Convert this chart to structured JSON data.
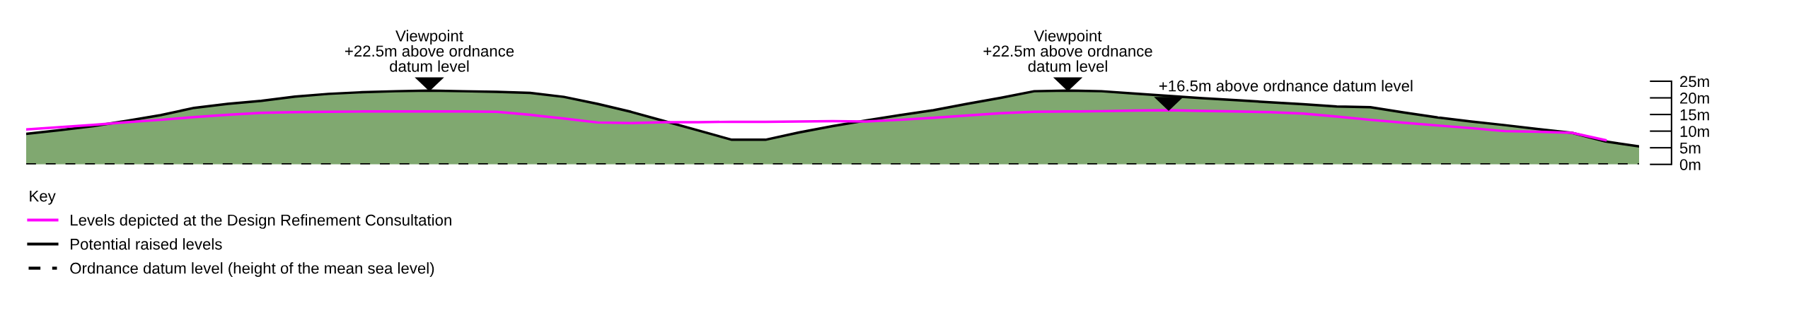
{
  "chart_data": {
    "type": "line",
    "legend_title": "Key",
    "legend": "bottom left",
    "tick_labels": "y",
    "grid": false,
    "categories": [
      null,
      null,
      null,
      null,
      null,
      null,
      null,
      null,
      null,
      null,
      null,
      null,
      null,
      null,
      null,
      null,
      null,
      null,
      null,
      null,
      null,
      null,
      null,
      null,
      null,
      null,
      null,
      null,
      null,
      null,
      null,
      null,
      null,
      null,
      null,
      null,
      null,
      null,
      null,
      null,
      null,
      null,
      null,
      null,
      null,
      null,
      null,
      null,
      null
    ],
    "ylim": [
      0,
      25
    ],
    "yticks": [
      {
        "value": 0,
        "label": "0m"
      },
      {
        "value": 5,
        "label": "5m"
      },
      {
        "value": 10,
        "label": "10m"
      },
      {
        "value": 15,
        "label": "15m"
      },
      {
        "value": 20,
        "label": "20m"
      },
      {
        "value": 25,
        "label": "25m"
      }
    ],
    "series": [
      {
        "name": "Levels depicted at the Design Refinement Consultation",
        "color": "#ff00ff",
        "values": [
          10.5,
          11.2,
          11.9,
          12.7,
          13.4,
          14.2,
          14.9,
          15.5,
          15.7,
          15.8,
          15.9,
          15.9,
          15.9,
          15.9,
          15.8,
          14.9,
          13.8,
          12.6,
          12.4,
          12.7,
          12.7,
          12.8,
          12.8,
          12.9,
          13.0,
          12.9,
          13.4,
          14.0,
          14.7,
          15.4,
          15.8,
          15.9,
          16.0,
          16.2,
          16.3,
          16.1,
          15.9,
          15.7,
          15.3,
          14.4,
          13.4,
          12.5,
          11.7,
          10.9,
          10.0,
          9.8,
          9.5,
          7.3,
          null
        ]
      },
      {
        "type": "area",
        "name": "Potential raised levels",
        "color": "#80a870",
        "values": [
          9.2,
          10.3,
          11.5,
          13.1,
          14.8,
          17.0,
          18.2,
          19.1,
          20.4,
          21.2,
          21.7,
          22.0,
          22.2,
          22.0,
          21.8,
          21.5,
          20.3,
          18.2,
          15.8,
          13.0,
          10.2,
          7.4,
          7.4,
          9.6,
          11.5,
          13.2,
          14.8,
          16.3,
          18.2,
          20.0,
          22.0,
          22.2,
          22.0,
          21.3,
          20.6,
          19.9,
          19.3,
          18.7,
          18.1,
          17.4,
          17.2,
          15.6,
          14.1,
          12.9,
          11.8,
          10.6,
          9.5,
          6.9,
          5.4
        ]
      }
    ],
    "ref_lines": [
      {
        "axis": "y",
        "value": 0,
        "label": "Ordnance datum level (height of the mean sea level)",
        "color": "#000000",
        "line_style": "dashed"
      }
    ],
    "annotations": [
      "Viewpoint\n+22.5m above ordnance\ndatum level",
      "Viewpoint\n+22.5m above ordnance\ndatum level",
      "+16.5m above ordnance datum level"
    ]
  }
}
